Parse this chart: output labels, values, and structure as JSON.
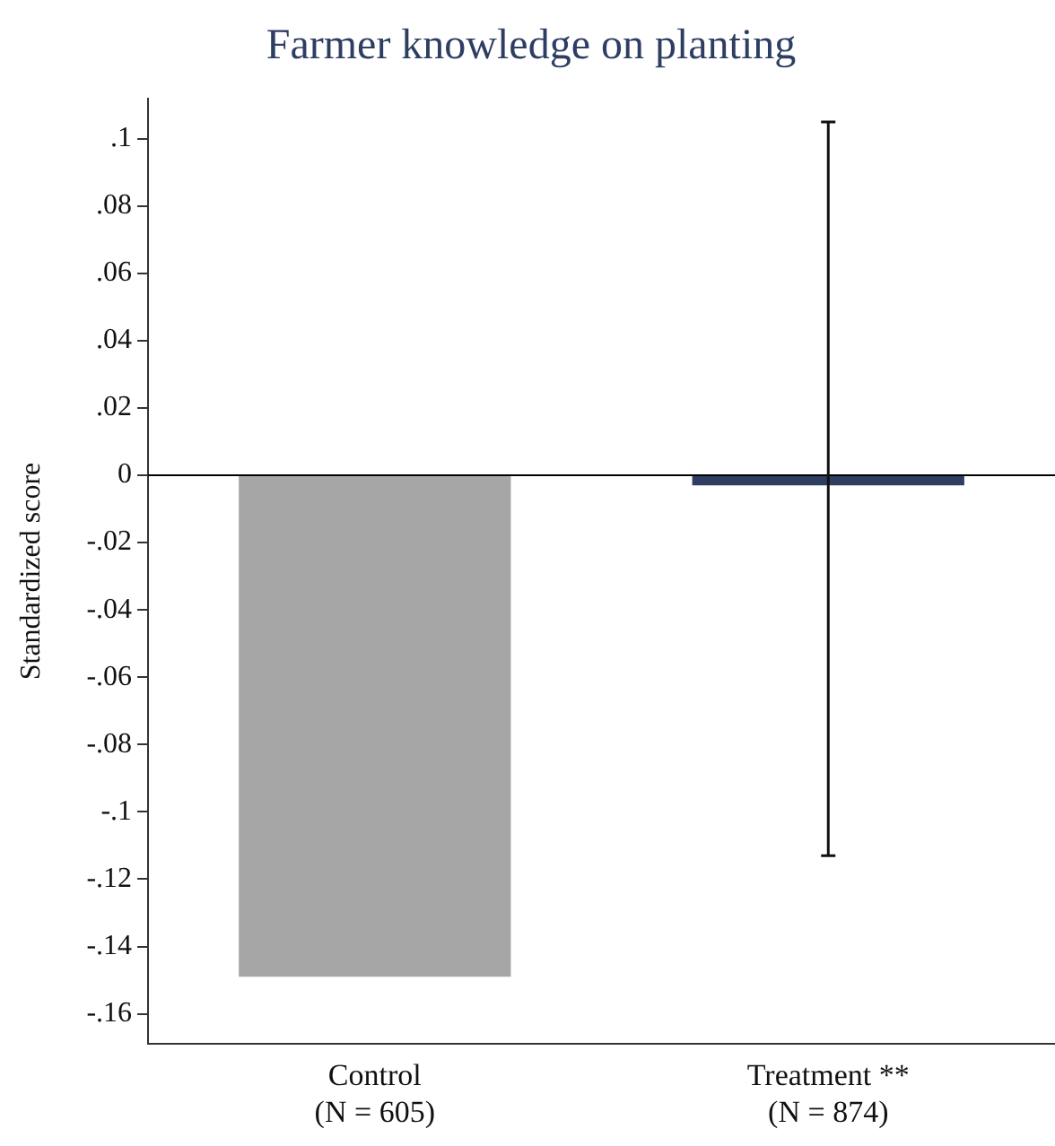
{
  "chart_data": {
    "type": "bar",
    "title": "Farmer knowledge on planting",
    "ylabel": "Standardized score",
    "categories": [
      "Control\n(N = 605)",
      "Treatment **\n(N = 874)"
    ],
    "values": [
      -0.149,
      -0.003
    ],
    "colors": [
      "#a6a6a6",
      "#2e3e63"
    ],
    "errors": [
      null,
      [
        -0.113,
        0.105
      ]
    ],
    "ylim": [
      -0.169,
      0.112
    ],
    "yticks": [
      {
        "value": 0.1,
        "label": ".1"
      },
      {
        "value": 0.08,
        "label": ".08"
      },
      {
        "value": 0.06,
        "label": ".06"
      },
      {
        "value": 0.04,
        "label": ".04"
      },
      {
        "value": 0.02,
        "label": ".02"
      },
      0,
      {
        "value": -0.02,
        "label": "-.02"
      },
      {
        "value": -0.04,
        "label": "-.04"
      },
      {
        "value": -0.06,
        "label": "-.06"
      },
      {
        "value": -0.08,
        "label": "-.08"
      },
      {
        "value": -0.1,
        "label": "-.1"
      },
      {
        "value": -0.12,
        "label": "-.12"
      },
      {
        "value": -0.14,
        "label": "-.14"
      },
      {
        "value": -0.16,
        "label": "-.16"
      }
    ],
    "ref_lines": [
      {
        "axis": "y",
        "value": 0,
        "color": "#000000"
      }
    ],
    "grid": false,
    "legend": false
  }
}
